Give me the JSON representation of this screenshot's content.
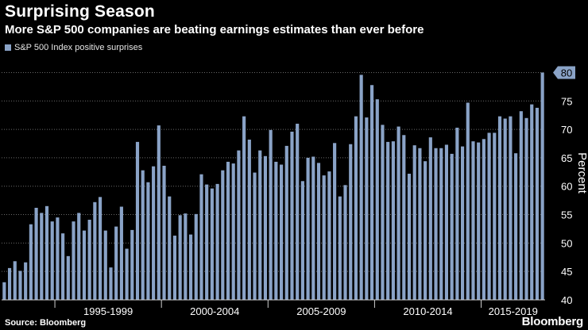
{
  "header": {
    "title": "Surprising Season",
    "subtitle": "More S&P 500 companies are beating earnings estimates than ever before"
  },
  "footer": {
    "source": "Source: Bloomberg",
    "brand": "Bloomberg"
  },
  "colors": {
    "bar": "#8aa3c7",
    "background": "#000000",
    "grid": "#6a6a6a"
  },
  "chart_data": {
    "type": "bar",
    "legend": [
      "S&P 500 Index positive surprises"
    ],
    "legend_position": "top-left",
    "ylabel": "Percent",
    "y_axis_side": "right",
    "ylim": [
      40,
      83
    ],
    "yticks": [
      40,
      45,
      50,
      55,
      60,
      65,
      70,
      75,
      80
    ],
    "grid": true,
    "x_period_labels": [
      "1995-1999",
      "2000-2004",
      "2005-2009",
      "2010-2014",
      "2015-2019"
    ],
    "last_value_label": "80",
    "series": [
      {
        "values": [
          43.1,
          45.6,
          46.8,
          45.1,
          46.6,
          53.3,
          56.2,
          55.3,
          56.5,
          53.8,
          54.5,
          51.7,
          47.7,
          53.8,
          55.3,
          52.2,
          54.1,
          57.2,
          58.1,
          52.2,
          45.7,
          52.9,
          56.4,
          49.0,
          52.3,
          67.8,
          62.8,
          60.7,
          63.5,
          70.7,
          63.6,
          58.2,
          51.3,
          54.9,
          55.2,
          51.5,
          55.1,
          62.1,
          60.3,
          59.6,
          60.4,
          62.8,
          64.3,
          64.0,
          66.3,
          72.3,
          68.2,
          62.4,
          66.3,
          65.3,
          69.9,
          64.3,
          63.8,
          67.1,
          69.6,
          71.0,
          60.9,
          65.0,
          65.2,
          64.1,
          61.9,
          62.6,
          67.6,
          58.2,
          60.2,
          67.4,
          72.3,
          79.6,
          72.1,
          77.8,
          75.3,
          70.8,
          67.8,
          67.9,
          70.5,
          69.0,
          62.2,
          67.2,
          66.7,
          64.4,
          68.6,
          66.7,
          66.7,
          67.3,
          65.7,
          70.3,
          67.0,
          74.7,
          67.9,
          67.7,
          68.3,
          69.4,
          69.4,
          72.3,
          71.9,
          72.3,
          65.8,
          73.2,
          72.0,
          74.4,
          73.8,
          80.0
        ]
      }
    ]
  }
}
